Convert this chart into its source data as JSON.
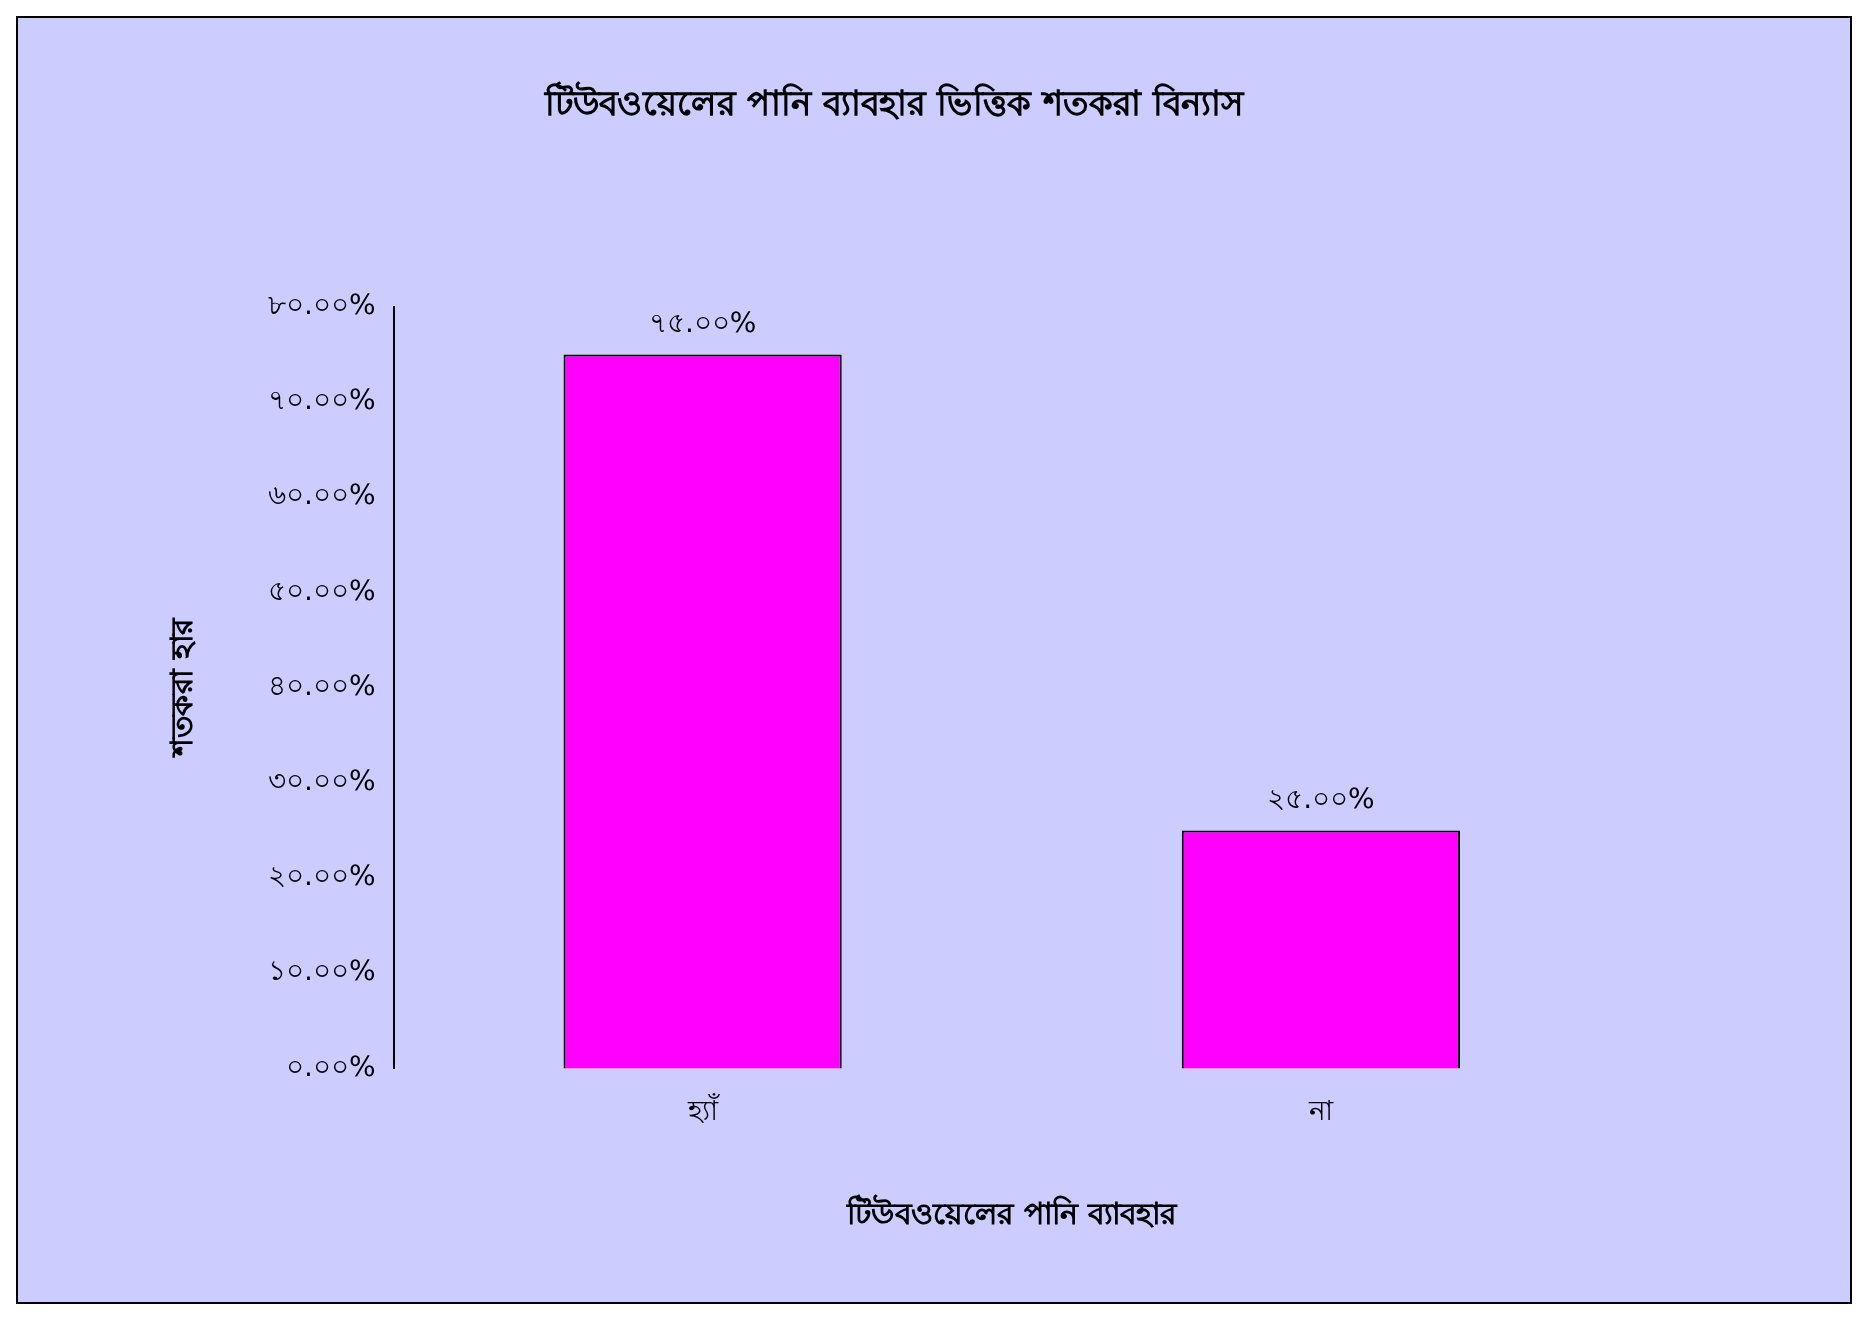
{
  "chart_data": {
    "type": "bar",
    "title": "টিউবওয়েলের পানি ব্যাবহার ভিত্তিক শতকরা বিন্যাস",
    "xlabel": "টিউবওয়েলের পানি ব্যাবহার",
    "ylabel": "শতকরা হার",
    "categories": [
      "হ্যাঁ",
      "না"
    ],
    "values": [
      75,
      25
    ],
    "value_labels": [
      "৭৫.০০%",
      "২৫.০০%"
    ],
    "color": "#ff00ff",
    "ylim": [
      0,
      80
    ],
    "yticks": [
      {
        "value": 0,
        "label": "০.০০%"
      },
      {
        "value": 10,
        "label": "১০.০০%"
      },
      {
        "value": 20,
        "label": "২০.০০%"
      },
      {
        "value": 30,
        "label": "৩০.০০%"
      },
      {
        "value": 40,
        "label": "৪০.০০%"
      },
      {
        "value": 50,
        "label": "৫০.০০%"
      },
      {
        "value": 60,
        "label": "৬০.০০%"
      },
      {
        "value": 70,
        "label": "৭০.০০%"
      },
      {
        "value": 80,
        "label": "৮০.০০%"
      }
    ],
    "grid": false,
    "legend": false
  }
}
